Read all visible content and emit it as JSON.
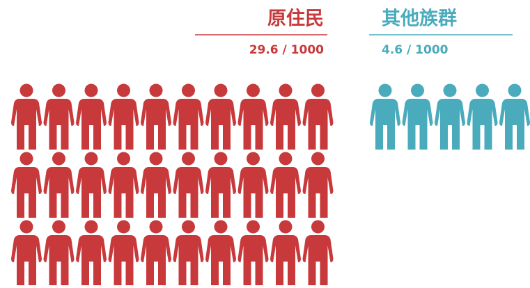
{
  "chart_data": {
    "type": "pictogram",
    "series": [
      {
        "name": "原住民",
        "color": "#c8393b",
        "values": [
          29.6
        ],
        "value_labels": [
          "29.6 / 1000"
        ]
      },
      {
        "name": "其他族群",
        "color": "#4aabbd",
        "values": [
          4.6
        ],
        "value_labels": [
          "4.6 / 1000"
        ]
      }
    ]
  }
}
